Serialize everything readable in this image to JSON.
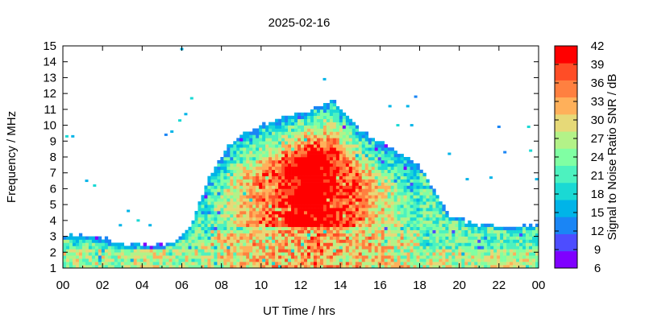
{
  "chart_data": {
    "type": "heatmap",
    "title": "2025-02-16",
    "xlabel": "UT Time / hrs",
    "ylabel": "Frequency / MHz",
    "xlim": [
      0,
      24
    ],
    "ylim": [
      1,
      15
    ],
    "x_tick_labels": [
      "00",
      "02",
      "04",
      "06",
      "08",
      "10",
      "12",
      "14",
      "16",
      "18",
      "20",
      "22",
      "00"
    ],
    "y_ticks": [
      1,
      2,
      3,
      4,
      5,
      6,
      7,
      8,
      9,
      10,
      11,
      12,
      13,
      14,
      15
    ],
    "colorbar": {
      "label": "Signal to Noise Ratio SNR / dB",
      "range": [
        6,
        42
      ],
      "ticks": [
        6,
        9,
        12,
        15,
        18,
        21,
        24,
        27,
        30,
        33,
        36,
        39,
        42
      ],
      "colors": [
        "#7f00ff",
        "#4d4dff",
        "#1a85f5",
        "#00b4e8",
        "#1ad9d4",
        "#4df2bf",
        "#80ffa3",
        "#b3f288",
        "#e6d978",
        "#ffb05a",
        "#ff8040",
        "#ff4d26",
        "#ff0000"
      ]
    },
    "profile": {
      "description_free": true,
      "hours": [
        0,
        2,
        2.5,
        4,
        5,
        5.6,
        6.3,
        6.8,
        7.5,
        8.5,
        10,
        11,
        12,
        13,
        13.7,
        14.3,
        15,
        16,
        17,
        18,
        18.6,
        19.5,
        21,
        22.5,
        24
      ],
      "upper_mhz": [
        3.1,
        3.0,
        2.6,
        2.5,
        2.5,
        2.8,
        3.4,
        4.8,
        7.0,
        9.0,
        10.0,
        10.5,
        10.8,
        11.2,
        11.5,
        10.6,
        9.7,
        9.0,
        8.3,
        7.5,
        6.2,
        4.3,
        3.8,
        3.6,
        3.7
      ]
    },
    "sporadic": [
      {
        "h": 0.2,
        "f": 9.3
      },
      {
        "h": 0.5,
        "f": 9.3
      },
      {
        "h": 1.2,
        "f": 6.5
      },
      {
        "h": 1.6,
        "f": 6.2
      },
      {
        "h": 2.9,
        "f": 3.7
      },
      {
        "h": 3.3,
        "f": 4.6
      },
      {
        "h": 3.8,
        "f": 4.0
      },
      {
        "h": 4.4,
        "f": 3.7
      },
      {
        "h": 5.2,
        "f": 9.4
      },
      {
        "h": 5.5,
        "f": 9.6
      },
      {
        "h": 5.9,
        "f": 10.3
      },
      {
        "h": 6.2,
        "f": 10.7
      },
      {
        "h": 6.5,
        "f": 11.7
      },
      {
        "h": 6.0,
        "f": 14.8
      },
      {
        "h": 13.2,
        "f": 12.9
      },
      {
        "h": 16.5,
        "f": 11.2
      },
      {
        "h": 16.9,
        "f": 10.0
      },
      {
        "h": 17.4,
        "f": 11.2
      },
      {
        "h": 17.8,
        "f": 11.8
      },
      {
        "h": 17.6,
        "f": 10.0
      },
      {
        "h": 19.5,
        "f": 8.2
      },
      {
        "h": 20.4,
        "f": 6.6
      },
      {
        "h": 21.6,
        "f": 6.7
      },
      {
        "h": 22.3,
        "f": 8.3
      },
      {
        "h": 23.6,
        "f": 8.4
      },
      {
        "h": 22.0,
        "f": 9.9
      },
      {
        "h": 23.5,
        "f": 9.9
      },
      {
        "h": 23.9,
        "f": 6.6
      }
    ]
  }
}
